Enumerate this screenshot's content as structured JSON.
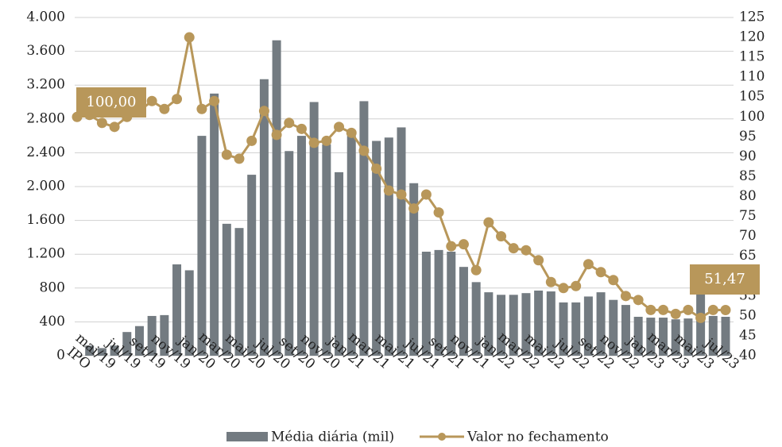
{
  "chart_data": {
    "type": "bar_line",
    "categories": [
      "IPO",
      null,
      "mai/19",
      null,
      "jul/19",
      null,
      "set/19",
      null,
      "nov/19",
      null,
      "jan/20",
      null,
      "mar/20",
      null,
      "mai/20",
      null,
      "jul/20",
      null,
      "set/20",
      null,
      "nov/20",
      null,
      "jan/21",
      null,
      "mar/21",
      null,
      "mai/21",
      null,
      "jul/21",
      null,
      "set/21",
      null,
      "nov/21",
      null,
      "jan/22",
      null,
      "mar/22",
      null,
      "mai/22",
      null,
      "jul/22",
      null,
      "set/22",
      null,
      "nov/22",
      null,
      "jan/23",
      null,
      "mar/23",
      null,
      "mai/23",
      null,
      "jul/23"
    ],
    "series": [
      {
        "name": "Média diária (mil)",
        "color": "#737b81",
        "type": "bar",
        "values": [
          null,
          120,
          90,
          120,
          280,
          350,
          470,
          480,
          1080,
          1010,
          2600,
          3100,
          1560,
          1510,
          2140,
          3270,
          3730,
          2420,
          2600,
          3000,
          2500,
          2170,
          2600,
          3010,
          2540,
          2580,
          2700,
          2040,
          1230,
          1250,
          1230,
          1050,
          870,
          750,
          720,
          720,
          740,
          770,
          760,
          630,
          630,
          700,
          750,
          660,
          600,
          460,
          450,
          450,
          430,
          440,
          730,
          470,
          460
        ]
      },
      {
        "name": "Valor no fechamento",
        "color": "#b8975a",
        "type": "line",
        "axis": "y2",
        "values": [
          100,
          100.5,
          98.5,
          97.5,
          100,
          101.5,
          104,
          102,
          104.5,
          120,
          102,
          104,
          90.5,
          89.5,
          94,
          101.5,
          95.5,
          98.5,
          97,
          93.5,
          94,
          97.5,
          96,
          91.5,
          87,
          81.5,
          80.5,
          77,
          80.5,
          76,
          67.5,
          68,
          61.5,
          73.5,
          70,
          67,
          66.5,
          64,
          58.5,
          57,
          57.5,
          63,
          61,
          59,
          55,
          54,
          51.5,
          51.5,
          50.5,
          51.5,
          49.5,
          51.5,
          51.47
        ],
        "value_labels": [
          "100,00",
          null,
          null,
          null,
          null,
          null,
          null,
          null,
          null,
          null,
          null,
          null,
          null,
          null,
          null,
          null,
          null,
          null,
          null,
          null,
          null,
          null,
          null,
          null,
          null,
          null,
          null,
          null,
          null,
          null,
          null,
          null,
          null,
          null,
          null,
          null,
          null,
          null,
          null,
          null,
          null,
          null,
          null,
          null,
          null,
          null,
          null,
          null,
          null,
          null,
          null,
          null,
          "51,47"
        ]
      }
    ],
    "ylim": [
      0,
      4000
    ],
    "yticks": [
      0,
      {
        "value": 400,
        "label": "400"
      },
      {
        "value": 800,
        "label": "800"
      },
      {
        "value": 1200,
        "label": "1.200"
      },
      {
        "value": 1600,
        "label": "1.600"
      },
      {
        "value": 2000,
        "label": "2.000"
      },
      {
        "value": 2400,
        "label": "2.400"
      },
      {
        "value": 2800,
        "label": "2.800"
      },
      {
        "value": 3200,
        "label": "3.200"
      },
      {
        "value": 3600,
        "label": "3.600"
      },
      {
        "value": 4000,
        "label": "4.000"
      }
    ],
    "y2lim": [
      40,
      125
    ],
    "y2ticks": [
      40,
      45,
      50,
      55,
      60,
      65,
      70,
      75,
      80,
      85,
      90,
      95,
      100,
      105,
      110,
      115,
      120,
      125
    ],
    "grid": true,
    "legend": "bottom"
  }
}
